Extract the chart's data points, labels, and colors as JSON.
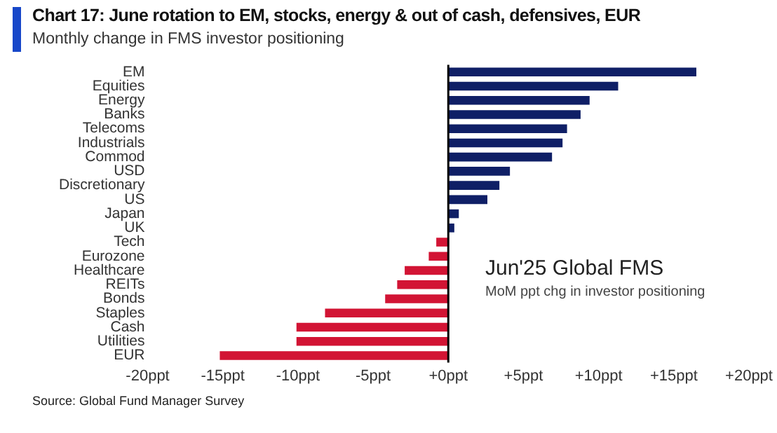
{
  "chart_data": {
    "type": "bar",
    "orientation": "horizontal",
    "title": "Chart 17: June rotation to EM, stocks, energy & out of cash, defensives, EUR",
    "subtitle": "Monthly change in FMS investor positioning",
    "categories": [
      "EM",
      "Equities",
      "Energy",
      "Banks",
      "Telecoms",
      "Industrials",
      "Commod",
      "USD",
      "Discretionary",
      "US",
      "Japan",
      "UK",
      "Tech",
      "Eurozone",
      "Healthcare",
      "REITs",
      "Bonds",
      "Staples",
      "Cash",
      "Utilities",
      "EUR"
    ],
    "values": [
      16.5,
      11.3,
      9.4,
      8.8,
      7.9,
      7.6,
      6.9,
      4.1,
      3.4,
      2.6,
      0.7,
      0.4,
      -0.8,
      -1.3,
      -2.9,
      -3.4,
      -4.2,
      -8.2,
      -10.1,
      -10.1,
      -15.2
    ],
    "colors": [
      "#0f1f66",
      "#0f1f66",
      "#0f1f66",
      "#0f1f66",
      "#0f1f66",
      "#0f1f66",
      "#0f1f66",
      "#0f1f66",
      "#0f1f66",
      "#0f1f66",
      "#0f1f66",
      "#0f1f66",
      "#d21434",
      "#d21434",
      "#d21434",
      "#d21434",
      "#d21434",
      "#d21434",
      "#d21434",
      "#d21434",
      "#d21434"
    ],
    "xlim": [
      -20,
      20
    ],
    "xticks": [
      {
        "value": -20,
        "label": "-20ppt"
      },
      {
        "value": -15,
        "label": "-15ppt"
      },
      {
        "value": -10,
        "label": "-10ppt"
      },
      {
        "value": -5,
        "label": "-5ppt"
      },
      {
        "value": 0,
        "label": "+0ppt"
      },
      {
        "value": 5,
        "label": "+5ppt"
      },
      {
        "value": 10,
        "label": "+10ppt"
      },
      {
        "value": 15,
        "label": "+15ppt"
      },
      {
        "value": 20,
        "label": "+20ppt"
      }
    ],
    "ref_lines": [
      {
        "axis": "x",
        "value": 0,
        "color": "#000000"
      }
    ],
    "grid": false,
    "legend": false,
    "annotations": [
      "Jun'25 Global FMS",
      "MoM ppt chg in investor positioning",
      "Source: Global Fund Manager Survey"
    ]
  }
}
